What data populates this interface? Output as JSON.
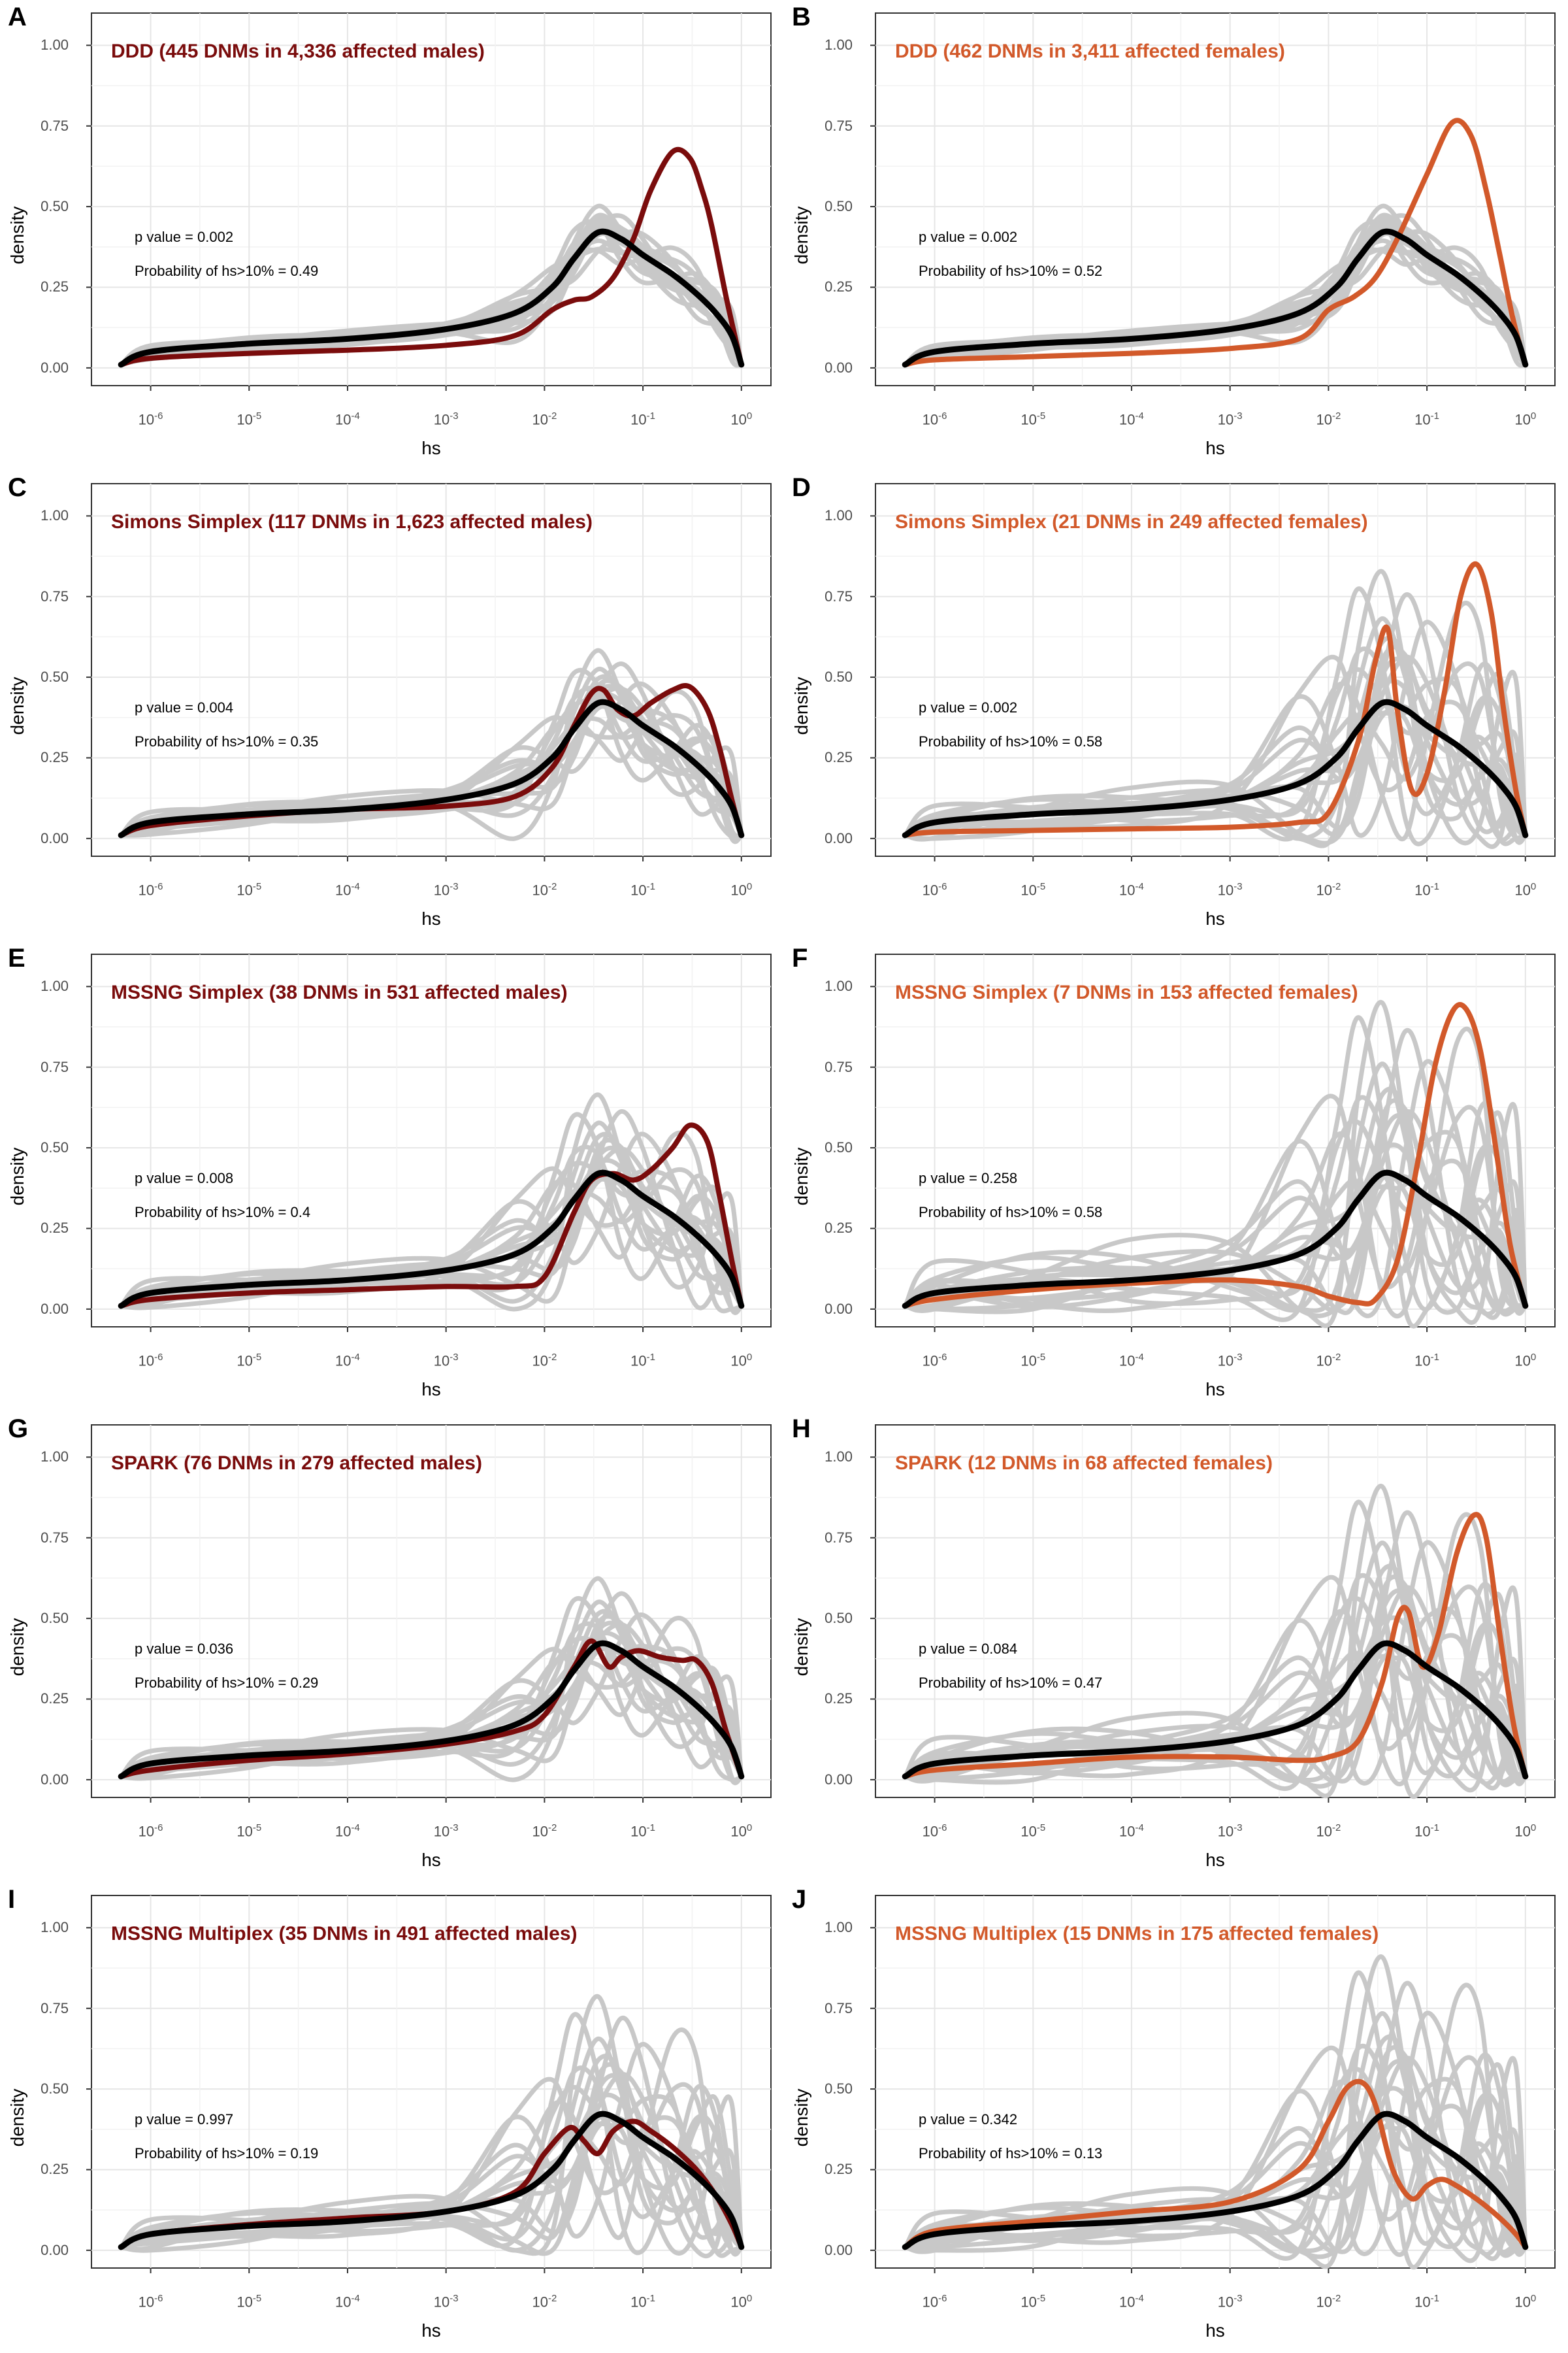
{
  "chart_data": [
    {
      "letter": "A",
      "type": "line",
      "title": "DDD (445 DNMs in 4,336 affected males)",
      "color": "#7a0c0c",
      "p_value_text": "p value = 0.002",
      "prob_text": "Probability of hs>10% = 0.49",
      "xlabel": "hs",
      "ylabel": "density",
      "xscale": "log10",
      "xlim": [
        5e-07,
        1
      ],
      "ylim": [
        0,
        1
      ],
      "xticks": [
        "10^-6",
        "10^-5",
        "10^-4",
        "10^-3",
        "10^-2",
        "10^-1",
        "10^0"
      ],
      "yticks": [
        "0.00",
        "0.25",
        "0.50",
        "0.75",
        "1.00"
      ],
      "observed": {
        "x": [
          5e-07,
          1e-06,
          1e-05,
          0.0001,
          0.001,
          0.005,
          0.012,
          0.02,
          0.03,
          0.05,
          0.08,
          0.12,
          0.2,
          0.3,
          0.4,
          0.5,
          0.7,
          1
        ],
        "y": [
          0.01,
          0.03,
          0.045,
          0.055,
          0.07,
          0.1,
          0.18,
          0.21,
          0.22,
          0.28,
          0.4,
          0.55,
          0.67,
          0.65,
          0.55,
          0.44,
          0.22,
          0.01
        ]
      },
      "null_mean": {
        "x": [
          5e-07,
          1e-06,
          1e-05,
          0.0001,
          0.001,
          0.005,
          0.012,
          0.02,
          0.035,
          0.06,
          0.1,
          0.2,
          0.35,
          0.55,
          0.8,
          1
        ],
        "y": [
          0.01,
          0.05,
          0.075,
          0.09,
          0.12,
          0.17,
          0.25,
          0.34,
          0.42,
          0.4,
          0.35,
          0.29,
          0.23,
          0.17,
          0.1,
          0.01
        ]
      },
      "null_spread": [
        0.03,
        0.1
      ]
    },
    {
      "letter": "B",
      "type": "line",
      "title": "DDD (462 DNMs in 3,411 affected females)",
      "color": "#d2592a",
      "p_value_text": "p value = 0.002",
      "prob_text": "Probability of hs>10% = 0.52",
      "xlabel": "hs",
      "ylabel": "density",
      "xscale": "log10",
      "xlim": [
        5e-07,
        1
      ],
      "ylim": [
        0,
        1
      ],
      "xticks": [
        "10^-6",
        "10^-5",
        "10^-4",
        "10^-3",
        "10^-2",
        "10^-1",
        "10^0"
      ],
      "yticks": [
        "0.00",
        "0.25",
        "0.50",
        "0.75",
        "1.00"
      ],
      "observed": {
        "x": [
          5e-07,
          1e-06,
          1e-05,
          0.0001,
          0.001,
          0.005,
          0.01,
          0.018,
          0.03,
          0.05,
          0.1,
          0.18,
          0.28,
          0.4,
          0.55,
          0.75,
          1
        ],
        "y": [
          0.01,
          0.025,
          0.035,
          0.045,
          0.06,
          0.09,
          0.18,
          0.22,
          0.28,
          0.4,
          0.6,
          0.76,
          0.72,
          0.55,
          0.35,
          0.15,
          0.01
        ]
      },
      "null_mean": {
        "x": [
          5e-07,
          1e-06,
          1e-05,
          0.0001,
          0.001,
          0.005,
          0.012,
          0.02,
          0.035,
          0.06,
          0.1,
          0.2,
          0.35,
          0.55,
          0.8,
          1
        ],
        "y": [
          0.01,
          0.05,
          0.075,
          0.09,
          0.12,
          0.17,
          0.25,
          0.34,
          0.42,
          0.4,
          0.35,
          0.29,
          0.23,
          0.17,
          0.1,
          0.01
        ]
      },
      "null_spread": [
        0.03,
        0.1
      ]
    },
    {
      "letter": "C",
      "type": "line",
      "title": "Simons Simplex (117 DNMs in 1,623 affected males)",
      "color": "#7a0c0c",
      "p_value_text": "p value = 0.004",
      "prob_text": "Probability of hs>10% = 0.35",
      "xlabel": "hs",
      "ylabel": "density",
      "xscale": "log10",
      "xlim": [
        5e-07,
        1
      ],
      "ylim": [
        0,
        1
      ],
      "xticks": [
        "10^-6",
        "10^-5",
        "10^-4",
        "10^-3",
        "10^-2",
        "10^-1",
        "10^0"
      ],
      "yticks": [
        "0.00",
        "0.25",
        "0.50",
        "0.75",
        "1.00"
      ],
      "observed": {
        "x": [
          5e-07,
          1e-06,
          1e-05,
          0.0001,
          0.001,
          0.005,
          0.012,
          0.02,
          0.03,
          0.04,
          0.055,
          0.08,
          0.12,
          0.2,
          0.3,
          0.45,
          0.6,
          0.8,
          1
        ],
        "y": [
          0.01,
          0.04,
          0.07,
          0.09,
          0.1,
          0.13,
          0.22,
          0.35,
          0.45,
          0.46,
          0.4,
          0.38,
          0.42,
          0.46,
          0.47,
          0.4,
          0.28,
          0.12,
          0.01
        ]
      },
      "null_mean": {
        "x": [
          5e-07,
          1e-06,
          1e-05,
          0.0001,
          0.001,
          0.005,
          0.012,
          0.02,
          0.035,
          0.06,
          0.1,
          0.2,
          0.35,
          0.55,
          0.8,
          1
        ],
        "y": [
          0.01,
          0.05,
          0.075,
          0.09,
          0.12,
          0.17,
          0.25,
          0.34,
          0.42,
          0.4,
          0.35,
          0.29,
          0.23,
          0.17,
          0.1,
          0.01
        ]
      },
      "null_spread": [
        0.05,
        0.2
      ]
    },
    {
      "letter": "D",
      "type": "line",
      "title": "Simons Simplex (21 DNMs in 249 affected females)",
      "color": "#d2592a",
      "p_value_text": "p value = 0.002",
      "prob_text": "Probability of hs>10% = 0.58",
      "xlabel": "hs",
      "ylabel": "density",
      "xscale": "log10",
      "xlim": [
        5e-07,
        1
      ],
      "ylim": [
        0,
        1
      ],
      "xticks": [
        "10^-6",
        "10^-5",
        "10^-4",
        "10^-3",
        "10^-2",
        "10^-1",
        "10^0"
      ],
      "yticks": [
        "0.00",
        "0.25",
        "0.50",
        "0.75",
        "1.00"
      ],
      "observed": {
        "x": [
          5e-07,
          1e-06,
          1e-05,
          0.0001,
          0.001,
          0.005,
          0.01,
          0.02,
          0.03,
          0.04,
          0.05,
          0.07,
          0.1,
          0.15,
          0.22,
          0.32,
          0.45,
          0.6,
          0.8,
          1
        ],
        "y": [
          0.01,
          0.02,
          0.025,
          0.03,
          0.035,
          0.05,
          0.08,
          0.3,
          0.55,
          0.65,
          0.4,
          0.15,
          0.2,
          0.45,
          0.75,
          0.85,
          0.7,
          0.4,
          0.15,
          0.01
        ]
      },
      "null_mean": {
        "x": [
          5e-07,
          1e-06,
          1e-05,
          0.0001,
          0.001,
          0.005,
          0.012,
          0.02,
          0.035,
          0.06,
          0.1,
          0.2,
          0.35,
          0.55,
          0.8,
          1
        ],
        "y": [
          0.01,
          0.05,
          0.075,
          0.09,
          0.12,
          0.17,
          0.25,
          0.34,
          0.42,
          0.4,
          0.35,
          0.29,
          0.23,
          0.17,
          0.1,
          0.01
        ]
      },
      "null_spread": [
        0.08,
        0.5
      ]
    },
    {
      "letter": "E",
      "type": "line",
      "title": "MSSNG Simplex (38 DNMs in 531 affected males)",
      "color": "#7a0c0c",
      "p_value_text": "p value = 0.008",
      "prob_text": "Probability of hs>10% = 0.4",
      "xlabel": "hs",
      "ylabel": "density",
      "xscale": "log10",
      "xlim": [
        5e-07,
        1
      ],
      "ylim": [
        0,
        1
      ],
      "xticks": [
        "10^-6",
        "10^-5",
        "10^-4",
        "10^-3",
        "10^-2",
        "10^-1",
        "10^0"
      ],
      "yticks": [
        "0.00",
        "0.25",
        "0.50",
        "0.75",
        "1.00"
      ],
      "observed": {
        "x": [
          5e-07,
          1e-06,
          1e-05,
          0.0001,
          0.001,
          0.005,
          0.01,
          0.02,
          0.03,
          0.05,
          0.08,
          0.12,
          0.2,
          0.3,
          0.45,
          0.6,
          0.8,
          1
        ],
        "y": [
          0.01,
          0.03,
          0.05,
          0.06,
          0.07,
          0.07,
          0.1,
          0.3,
          0.4,
          0.42,
          0.4,
          0.43,
          0.5,
          0.57,
          0.52,
          0.35,
          0.15,
          0.01
        ]
      },
      "null_mean": {
        "x": [
          5e-07,
          1e-06,
          1e-05,
          0.0001,
          0.001,
          0.005,
          0.012,
          0.02,
          0.035,
          0.06,
          0.1,
          0.2,
          0.35,
          0.55,
          0.8,
          1
        ],
        "y": [
          0.01,
          0.05,
          0.075,
          0.09,
          0.12,
          0.17,
          0.25,
          0.34,
          0.42,
          0.4,
          0.35,
          0.29,
          0.23,
          0.17,
          0.1,
          0.01
        ]
      },
      "null_spread": [
        0.06,
        0.3
      ]
    },
    {
      "letter": "F",
      "type": "line",
      "title": "MSSNG Simplex (7 DNMs in 153 affected females)",
      "color": "#d2592a",
      "p_value_text": "p value = 0.258",
      "prob_text": "Probability of hs>10% = 0.58",
      "xlabel": "hs",
      "ylabel": "density",
      "xscale": "log10",
      "xlim": [
        5e-07,
        1
      ],
      "ylim": [
        0,
        1
      ],
      "xticks": [
        "10^-6",
        "10^-5",
        "10^-4",
        "10^-3",
        "10^-2",
        "10^-1",
        "10^0"
      ],
      "yticks": [
        "0.00",
        "0.25",
        "0.50",
        "0.75",
        "1.00"
      ],
      "observed": {
        "x": [
          5e-07,
          1e-06,
          1e-05,
          0.0001,
          0.001,
          0.005,
          0.01,
          0.02,
          0.03,
          0.05,
          0.08,
          0.12,
          0.18,
          0.25,
          0.35,
          0.5,
          0.7,
          1
        ],
        "y": [
          0.01,
          0.03,
          0.06,
          0.08,
          0.09,
          0.07,
          0.04,
          0.02,
          0.03,
          0.15,
          0.45,
          0.75,
          0.92,
          0.93,
          0.8,
          0.5,
          0.2,
          0.01
        ]
      },
      "null_mean": {
        "x": [
          5e-07,
          1e-06,
          1e-05,
          0.0001,
          0.001,
          0.005,
          0.012,
          0.02,
          0.035,
          0.06,
          0.1,
          0.2,
          0.35,
          0.55,
          0.8,
          1
        ],
        "y": [
          0.01,
          0.05,
          0.075,
          0.09,
          0.12,
          0.17,
          0.25,
          0.34,
          0.42,
          0.4,
          0.35,
          0.29,
          0.23,
          0.17,
          0.1,
          0.01
        ]
      },
      "null_spread": [
        0.15,
        0.65
      ]
    },
    {
      "letter": "G",
      "type": "line",
      "title": "SPARK (76 DNMs in 279 affected males)",
      "color": "#7a0c0c",
      "p_value_text": "p value = 0.036",
      "prob_text": "Probability of hs>10% = 0.29",
      "xlabel": "hs",
      "ylabel": "density",
      "xscale": "log10",
      "xlim": [
        5e-07,
        1
      ],
      "ylim": [
        0,
        1
      ],
      "xticks": [
        "10^-6",
        "10^-5",
        "10^-4",
        "10^-3",
        "10^-2",
        "10^-1",
        "10^0"
      ],
      "yticks": [
        "0.00",
        "0.25",
        "0.50",
        "0.75",
        "1.00"
      ],
      "observed": {
        "x": [
          5e-07,
          1e-06,
          1e-05,
          0.0001,
          0.001,
          0.005,
          0.01,
          0.02,
          0.03,
          0.045,
          0.06,
          0.09,
          0.15,
          0.25,
          0.35,
          0.5,
          0.7,
          1
        ],
        "y": [
          0.01,
          0.03,
          0.06,
          0.08,
          0.11,
          0.15,
          0.2,
          0.35,
          0.43,
          0.35,
          0.38,
          0.4,
          0.38,
          0.37,
          0.37,
          0.3,
          0.15,
          0.01
        ]
      },
      "null_mean": {
        "x": [
          5e-07,
          1e-06,
          1e-05,
          0.0001,
          0.001,
          0.005,
          0.012,
          0.02,
          0.035,
          0.06,
          0.1,
          0.2,
          0.35,
          0.55,
          0.8,
          1
        ],
        "y": [
          0.01,
          0.05,
          0.075,
          0.09,
          0.12,
          0.17,
          0.25,
          0.34,
          0.42,
          0.4,
          0.35,
          0.29,
          0.23,
          0.17,
          0.1,
          0.01
        ]
      },
      "null_spread": [
        0.06,
        0.25
      ]
    },
    {
      "letter": "H",
      "type": "line",
      "title": "SPARK (12 DNMs in 68 affected females)",
      "color": "#d2592a",
      "p_value_text": "p value = 0.084",
      "prob_text": "Probability of hs>10% = 0.47",
      "xlabel": "hs",
      "ylabel": "density",
      "xscale": "log10",
      "xlim": [
        5e-07,
        1
      ],
      "ylim": [
        0,
        1
      ],
      "xticks": [
        "10^-6",
        "10^-5",
        "10^-4",
        "10^-3",
        "10^-2",
        "10^-1",
        "10^0"
      ],
      "yticks": [
        "0.00",
        "0.25",
        "0.50",
        "0.75",
        "1.00"
      ],
      "observed": {
        "x": [
          5e-07,
          1e-06,
          1e-05,
          0.0001,
          0.001,
          0.005,
          0.01,
          0.02,
          0.035,
          0.05,
          0.065,
          0.09,
          0.13,
          0.2,
          0.3,
          0.4,
          0.55,
          0.75,
          1
        ],
        "y": [
          0.01,
          0.03,
          0.05,
          0.07,
          0.07,
          0.06,
          0.07,
          0.12,
          0.3,
          0.5,
          0.52,
          0.35,
          0.45,
          0.7,
          0.82,
          0.75,
          0.45,
          0.18,
          0.01
        ]
      },
      "null_mean": {
        "x": [
          5e-07,
          1e-06,
          1e-05,
          0.0001,
          0.001,
          0.005,
          0.012,
          0.02,
          0.035,
          0.06,
          0.1,
          0.2,
          0.35,
          0.55,
          0.8,
          1
        ],
        "y": [
          0.01,
          0.05,
          0.075,
          0.09,
          0.12,
          0.17,
          0.25,
          0.34,
          0.42,
          0.4,
          0.35,
          0.29,
          0.23,
          0.17,
          0.1,
          0.01
        ]
      },
      "null_spread": [
        0.12,
        0.6
      ]
    },
    {
      "letter": "I",
      "type": "line",
      "title": "MSSNG Multiplex (35 DNMs in 491 affected males)",
      "color": "#7a0c0c",
      "p_value_text": "p value = 0.997",
      "prob_text": "Probability of hs>10% = 0.19",
      "xlabel": "hs",
      "ylabel": "density",
      "xscale": "log10",
      "xlim": [
        5e-07,
        1
      ],
      "ylim": [
        0,
        1
      ],
      "xticks": [
        "10^-6",
        "10^-5",
        "10^-4",
        "10^-3",
        "10^-2",
        "10^-1",
        "10^0"
      ],
      "yticks": [
        "0.00",
        "0.25",
        "0.50",
        "0.75",
        "1.00"
      ],
      "observed": {
        "x": [
          5e-07,
          1e-06,
          1e-05,
          0.0001,
          0.001,
          0.005,
          0.01,
          0.018,
          0.025,
          0.035,
          0.05,
          0.08,
          0.12,
          0.2,
          0.35,
          0.55,
          0.8,
          1
        ],
        "y": [
          0.01,
          0.05,
          0.08,
          0.1,
          0.12,
          0.18,
          0.3,
          0.38,
          0.34,
          0.3,
          0.37,
          0.4,
          0.37,
          0.32,
          0.25,
          0.17,
          0.08,
          0.01
        ]
      },
      "null_mean": {
        "x": [
          5e-07,
          1e-06,
          1e-05,
          0.0001,
          0.001,
          0.005,
          0.012,
          0.02,
          0.035,
          0.06,
          0.1,
          0.2,
          0.35,
          0.55,
          0.8,
          1
        ],
        "y": [
          0.01,
          0.05,
          0.075,
          0.09,
          0.12,
          0.17,
          0.25,
          0.34,
          0.42,
          0.4,
          0.35,
          0.29,
          0.23,
          0.17,
          0.1,
          0.01
        ]
      },
      "null_spread": [
        0.07,
        0.45
      ]
    },
    {
      "letter": "J",
      "type": "line",
      "title": "MSSNG Multiplex (15 DNMs in 175 affected females)",
      "color": "#d2592a",
      "p_value_text": "p value = 0.342",
      "prob_text": "Probability of hs>10% = 0.13",
      "xlabel": "hs",
      "ylabel": "density",
      "xscale": "log10",
      "xlim": [
        5e-07,
        1
      ],
      "ylim": [
        0,
        1
      ],
      "xticks": [
        "10^-6",
        "10^-5",
        "10^-4",
        "10^-3",
        "10^-2",
        "10^-1",
        "10^0"
      ],
      "yticks": [
        "0.00",
        "0.25",
        "0.50",
        "0.75",
        "1.00"
      ],
      "observed": {
        "x": [
          5e-07,
          1e-06,
          1e-05,
          0.0001,
          0.001,
          0.005,
          0.01,
          0.015,
          0.022,
          0.03,
          0.045,
          0.07,
          0.1,
          0.14,
          0.2,
          0.35,
          0.55,
          0.8,
          1
        ],
        "y": [
          0.01,
          0.06,
          0.09,
          0.12,
          0.15,
          0.25,
          0.4,
          0.5,
          0.52,
          0.45,
          0.25,
          0.16,
          0.2,
          0.22,
          0.2,
          0.15,
          0.1,
          0.05,
          0.01
        ]
      },
      "null_mean": {
        "x": [
          5e-07,
          1e-06,
          1e-05,
          0.0001,
          0.001,
          0.005,
          0.012,
          0.02,
          0.035,
          0.06,
          0.1,
          0.2,
          0.35,
          0.55,
          0.8,
          1
        ],
        "y": [
          0.01,
          0.05,
          0.075,
          0.09,
          0.12,
          0.17,
          0.25,
          0.34,
          0.42,
          0.4,
          0.35,
          0.29,
          0.23,
          0.17,
          0.1,
          0.01
        ]
      },
      "null_spread": [
        0.1,
        0.6
      ]
    }
  ],
  "colors": {
    "null_curves": "#c8c8c8",
    "null_mean": "#000000",
    "males": "#7a0c0c",
    "females": "#d2592a"
  }
}
